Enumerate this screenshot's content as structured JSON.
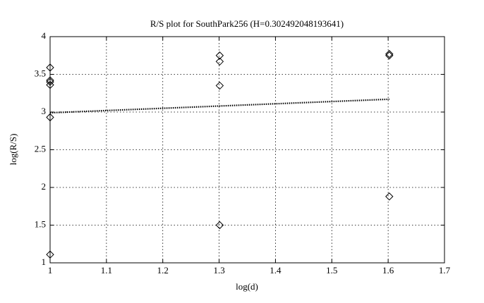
{
  "chart_data": {
    "type": "scatter",
    "title": "R/S plot for SouthPark256 (H=0.302492048193641)",
    "x_label": "log(d)",
    "y_label": "log(R/S)",
    "xlim": [
      1,
      1.7
    ],
    "xticks": [
      1,
      1.1,
      1.2,
      1.3,
      1.4,
      1.5,
      1.6,
      1.7
    ],
    "ylim": [
      1,
      4
    ],
    "yticks": [
      1,
      1.5,
      2,
      2.5,
      3,
      3.5,
      4
    ],
    "grid": true,
    "series": [
      {
        "color": "#000000",
        "marker": "diamond",
        "x": [
          1,
          1,
          1,
          1,
          1,
          1,
          1.30103,
          1.30103,
          1.30103,
          1.30103,
          1.60206,
          1.60206,
          1.60206
        ],
        "values": [
          3.59,
          3.42,
          3.4,
          3.36,
          2.93,
          1.11,
          3.75,
          3.67,
          3.35,
          1.5,
          3.77,
          3.75,
          1.88
        ]
      },
      {
        "color": "#000000",
        "line_style": "dotted",
        "x": [
          1,
          1.60206
        ],
        "values": [
          2.99,
          3.17
        ]
      }
    ]
  }
}
